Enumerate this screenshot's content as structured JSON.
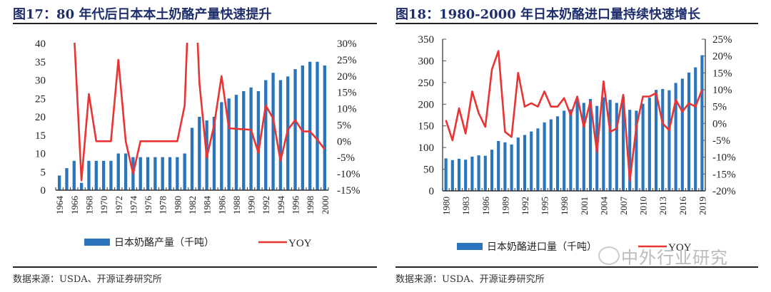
{
  "colors": {
    "bar": "#2b75bd",
    "line": "#ea3434",
    "title": "#1f2f6b"
  },
  "watermark": "中外行业研究",
  "chart_data": [
    {
      "type": "bar+line",
      "title": "图17：80 年代后日本本土奶酪产量快速提升",
      "source": "数据来源：USDA、开源证券研究所",
      "xlabel": "",
      "ylabel": "",
      "ylim": [
        0,
        40
      ],
      "yticks": [
        "0",
        "5",
        "10",
        "15",
        "20",
        "25",
        "30",
        "35",
        "40"
      ],
      "y2lim": [
        -15,
        30
      ],
      "y2ticks": [
        "-15%",
        "-10%",
        "-5%",
        "0%",
        "5%",
        "10%",
        "15%",
        "20%",
        "25%",
        "30%"
      ],
      "x": [
        1964,
        1965,
        1966,
        1967,
        1968,
        1969,
        1970,
        1971,
        1972,
        1973,
        1974,
        1975,
        1976,
        1977,
        1978,
        1979,
        1980,
        1981,
        1982,
        1983,
        1984,
        1985,
        1986,
        1987,
        1988,
        1989,
        1990,
        1991,
        1992,
        1993,
        1994,
        1995,
        1996,
        1997,
        1998,
        1999,
        2000
      ],
      "xticks": [
        "1964",
        "1966",
        "1968",
        "1970",
        "1972",
        "1974",
        "1976",
        "1978",
        "1980",
        "1982",
        "1984",
        "1986",
        "1988",
        "1990",
        "1992",
        "1994",
        "1996",
        "1998",
        "2000"
      ],
      "legend": {
        "position": "bottom",
        "entries": [
          "日本奶酪产量（千吨）",
          "YOY"
        ]
      },
      "series": [
        {
          "name": "日本奶酪产量（千吨）",
          "type": "bar",
          "axis": "left",
          "values": [
            4,
            6,
            8,
            2,
            8,
            8,
            8,
            8,
            10,
            10,
            9,
            9,
            9,
            9,
            9,
            9,
            9,
            10,
            17,
            20,
            19,
            20,
            24,
            25,
            26,
            27,
            28,
            27,
            30,
            32,
            30,
            31,
            33,
            34,
            35,
            35,
            34
          ]
        },
        {
          "name": "YOY",
          "type": "line",
          "axis": "right",
          "values": [
            null,
            null,
            33,
            -12,
            14.5,
            0,
            0,
            0,
            25,
            0,
            -10,
            0,
            0,
            0,
            0,
            0,
            0,
            11,
            70,
            18,
            -5,
            5,
            20,
            4,
            3.8,
            3.7,
            3.5,
            -3.5,
            11,
            7,
            -6,
            3.5,
            6.5,
            3,
            3,
            0.5,
            -2.5
          ]
        }
      ]
    },
    {
      "type": "bar+line",
      "title": "图18：1980-2000 年日本奶酪进口量持续快速增长",
      "source": "数据来源：USDA、开源证券研究所",
      "xlabel": "",
      "ylabel": "",
      "ylim": [
        0,
        350
      ],
      "yticks": [
        "0",
        "50",
        "100",
        "150",
        "200",
        "250",
        "300",
        "350"
      ],
      "y2lim": [
        -20,
        25
      ],
      "y2ticks": [
        "-20%",
        "-15%",
        "-10%",
        "-5%",
        "0%",
        "5%",
        "10%",
        "15%",
        "20%",
        "25%"
      ],
      "x": [
        1980,
        1981,
        1982,
        1983,
        1984,
        1985,
        1986,
        1987,
        1988,
        1989,
        1990,
        1991,
        1992,
        1993,
        1994,
        1995,
        1996,
        1997,
        1998,
        1999,
        2000,
        2001,
        2002,
        2003,
        2004,
        2005,
        2006,
        2007,
        2008,
        2009,
        2010,
        2011,
        2012,
        2013,
        2014,
        2015,
        2016,
        2017,
        2018,
        2019
      ],
      "xticks": [
        "1980",
        "1983",
        "1986",
        "1989",
        "1992",
        "1995",
        "1998",
        "2001",
        "2004",
        "2007",
        "2010",
        "2013",
        "2016",
        "2019"
      ],
      "legend": {
        "position": "bottom",
        "entries": [
          "日本奶酪进口量（千吨）",
          "YOY"
        ]
      },
      "series": [
        {
          "name": "日本奶酪进口量（千吨）",
          "type": "bar",
          "axis": "left",
          "values": [
            75,
            71,
            74,
            72,
            79,
            82,
            81,
            95,
            115,
            112,
            107,
            123,
            129,
            137,
            144,
            158,
            165,
            172,
            185,
            188,
            210,
            203,
            212,
            196,
            216,
            210,
            203,
            217,
            187,
            185,
            201,
            215,
            233,
            235,
            232,
            249,
            259,
            273,
            285,
            313
          ]
        },
        {
          "name": "YOY",
          "type": "line",
          "axis": "right",
          "values": [
            1,
            -5,
            4.5,
            -3,
            9.5,
            3,
            -1,
            16,
            21.5,
            -2.5,
            -4,
            15,
            5,
            6,
            5,
            9.5,
            5,
            5,
            7.5,
            2.5,
            8,
            -1,
            6.5,
            -8.5,
            12.5,
            -2.5,
            -1.5,
            8.5,
            -17,
            -1,
            8,
            8,
            9,
            0,
            -2,
            7,
            3.5,
            6,
            5,
            10
          ]
        }
      ]
    }
  ]
}
